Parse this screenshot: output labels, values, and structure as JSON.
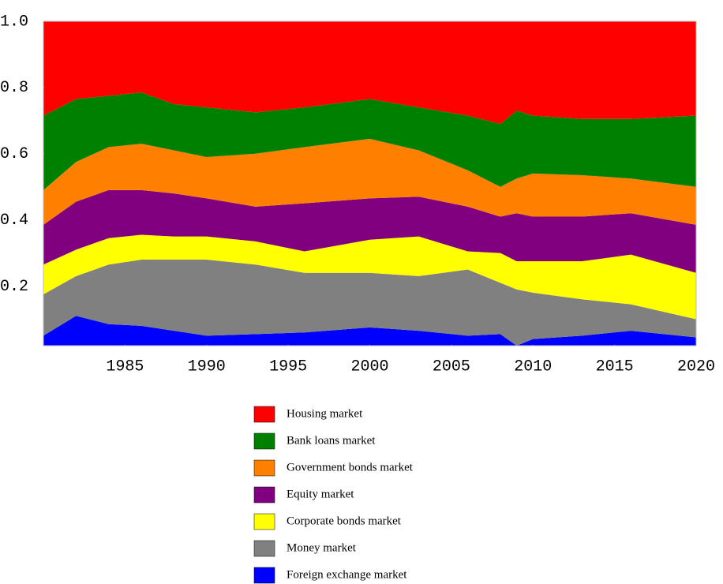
{
  "chart_data": {
    "type": "stacked_area",
    "x": [
      1980,
      1982,
      1984,
      1986,
      1988,
      1990,
      1993,
      1996,
      2000,
      2003,
      2006,
      2008,
      2009,
      2010,
      2013,
      2016,
      2020
    ],
    "xlim": [
      1980,
      2020
    ],
    "xticks": [
      1985,
      1990,
      1995,
      2000,
      2005,
      2010,
      2015,
      2020
    ],
    "ylim": [
      0.02,
      1.0
    ],
    "yticks": [
      0.2,
      0.4,
      0.6,
      0.8,
      {
        "value": 1.0,
        "label": "1.0"
      }
    ],
    "series": [
      {
        "name": "Housing market",
        "color": "#ff0000",
        "values": [
          0.285,
          0.235,
          0.225,
          0.215,
          0.25,
          0.26,
          0.275,
          0.26,
          0.235,
          0.26,
          0.285,
          0.31,
          0.27,
          0.285,
          0.295,
          0.295,
          0.285
        ]
      },
      {
        "name": "Bank loans market",
        "color": "#008000",
        "values": [
          0.225,
          0.19,
          0.155,
          0.155,
          0.14,
          0.15,
          0.125,
          0.12,
          0.12,
          0.13,
          0.165,
          0.19,
          0.205,
          0.175,
          0.17,
          0.18,
          0.215
        ]
      },
      {
        "name": "Government bonds market",
        "color": "#ff8000",
        "values": [
          0.105,
          0.12,
          0.13,
          0.14,
          0.13,
          0.125,
          0.16,
          0.17,
          0.18,
          0.14,
          0.11,
          0.09,
          0.105,
          0.13,
          0.125,
          0.105,
          0.115
        ]
      },
      {
        "name": "Equity market",
        "color": "#800080",
        "values": [
          0.12,
          0.145,
          0.145,
          0.135,
          0.13,
          0.115,
          0.105,
          0.145,
          0.125,
          0.12,
          0.135,
          0.11,
          0.145,
          0.135,
          0.135,
          0.125,
          0.145
        ]
      },
      {
        "name": "Corporate bonds market",
        "color": "#ffff00",
        "values": [
          0.09,
          0.08,
          0.08,
          0.075,
          0.07,
          0.07,
          0.07,
          0.065,
          0.1,
          0.12,
          0.055,
          0.09,
          0.085,
          0.095,
          0.115,
          0.15,
          0.14
        ]
      },
      {
        "name": "Money market",
        "color": "#808080",
        "values": [
          0.125,
          0.12,
          0.18,
          0.2,
          0.215,
          0.23,
          0.21,
          0.18,
          0.165,
          0.165,
          0.2,
          0.155,
          0.17,
          0.14,
          0.11,
          0.08,
          0.055
        ]
      },
      {
        "name": "Foreign exchange market",
        "color": "#0000ff",
        "values": [
          0.05,
          0.11,
          0.085,
          0.08,
          0.065,
          0.05,
          0.055,
          0.06,
          0.075,
          0.065,
          0.05,
          0.055,
          0.02,
          0.04,
          0.05,
          0.065,
          0.045
        ]
      }
    ]
  }
}
